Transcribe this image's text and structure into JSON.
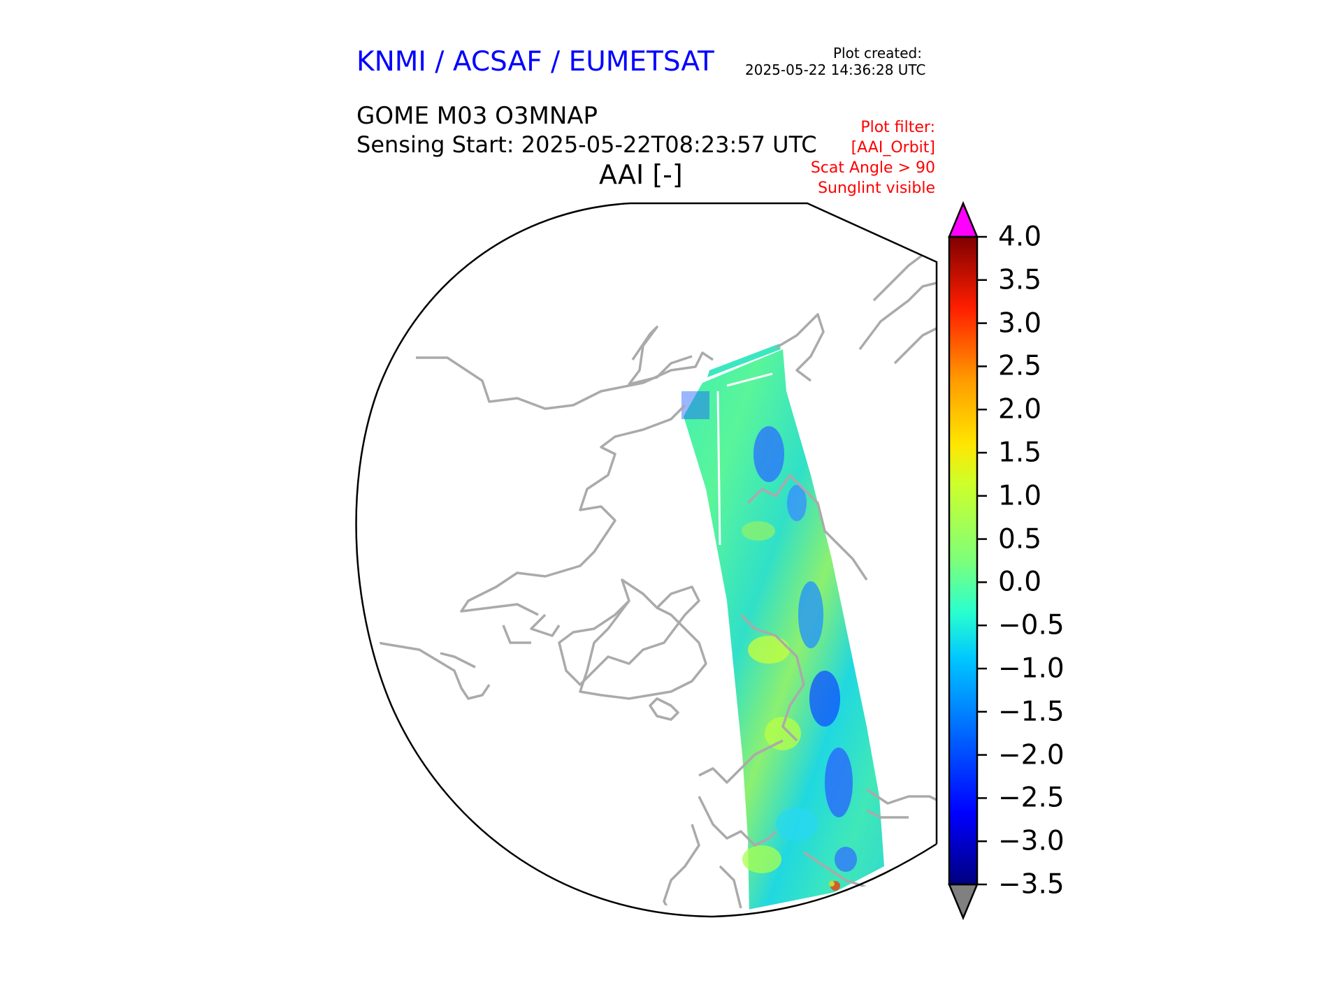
{
  "header": {
    "organisation": "KNMI / ACSAF / EUMETSAT",
    "plot_created_label": "Plot created:",
    "plot_created_time": "2025-05-22 14:36:28 UTC",
    "product": "GOME M03 O3MNAP",
    "sensing_start": "Sensing Start: 2025-05-22T08:23:57 UTC",
    "variable": "AAI [-]"
  },
  "filters": {
    "lines": [
      "Plot filter:",
      "[AAI_Orbit]",
      "Scat Angle > 90",
      "Sunglint visible"
    ]
  },
  "chart_data": {
    "type": "heatmap",
    "title": "AAI [-]",
    "projection": "north polar stereographic",
    "colorbar": {
      "label": "AAI [-]",
      "min": -3.5,
      "max": 4.0,
      "ticks": [
        -3.5,
        -3.0,
        -2.5,
        -2.0,
        -1.5,
        -1.0,
        -0.5,
        0.0,
        0.5,
        1.0,
        1.5,
        2.0,
        2.5,
        3.0,
        3.5,
        4.0
      ],
      "tick_labels": [
        "−3.5",
        "−3.0",
        "−2.5",
        "−2.0",
        "−1.5",
        "−1.0",
        "−0.5",
        "0.0",
        "0.5",
        "1.0",
        "1.5",
        "2.0",
        "2.5",
        "3.0",
        "3.5",
        "4.0"
      ],
      "colormap": "jet",
      "extend_max_color": "#ff00ff",
      "extend_min_color": "#808080"
    },
    "swath_dominant_range": [
      -1.0,
      1.0
    ]
  },
  "colors": {
    "title_blue": "#0000ff",
    "filter_red": "#ff0000",
    "coastline": "#aaaaaa"
  }
}
